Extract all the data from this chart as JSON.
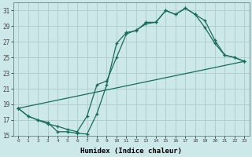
{
  "xlabel": "Humidex (Indice chaleur)",
  "bg_color": "#cde8e8",
  "grid_color": "#b0d0d0",
  "line_color": "#1a6b5a",
  "xlim": [
    -0.5,
    23.5
  ],
  "ylim": [
    15,
    32
  ],
  "xticks": [
    0,
    1,
    2,
    3,
    4,
    5,
    6,
    7,
    8,
    9,
    10,
    11,
    12,
    13,
    14,
    15,
    16,
    17,
    18,
    19,
    20,
    21,
    22,
    23
  ],
  "yticks": [
    15,
    17,
    19,
    21,
    23,
    25,
    27,
    29,
    31
  ],
  "line1_x": [
    0,
    1,
    2,
    3,
    4,
    5,
    6,
    7,
    8,
    9,
    10,
    11,
    12,
    13,
    14,
    15,
    16,
    17,
    18,
    19,
    20,
    21,
    22,
    23
  ],
  "line1_y": [
    18.5,
    17.5,
    17.0,
    16.7,
    15.5,
    15.5,
    15.3,
    15.2,
    17.8,
    21.5,
    26.8,
    28.2,
    28.4,
    29.5,
    29.5,
    31.0,
    30.5,
    31.3,
    30.5,
    29.7,
    27.2,
    25.3,
    25.0,
    24.5
  ],
  "line2_x": [
    0,
    1,
    2,
    3,
    4,
    5,
    6,
    7,
    8,
    9,
    10,
    11,
    12,
    13,
    14,
    15,
    16,
    17,
    18,
    19,
    20,
    21,
    22,
    23
  ],
  "line2_y": [
    18.5,
    17.5,
    17.0,
    16.5,
    16.2,
    15.8,
    15.5,
    17.5,
    21.5,
    22.0,
    25.0,
    28.0,
    28.5,
    29.3,
    29.5,
    31.0,
    30.5,
    31.3,
    30.5,
    28.8,
    26.8,
    25.3,
    25.0,
    24.5
  ],
  "line3_x": [
    0,
    23
  ],
  "line3_y": [
    18.5,
    24.5
  ]
}
